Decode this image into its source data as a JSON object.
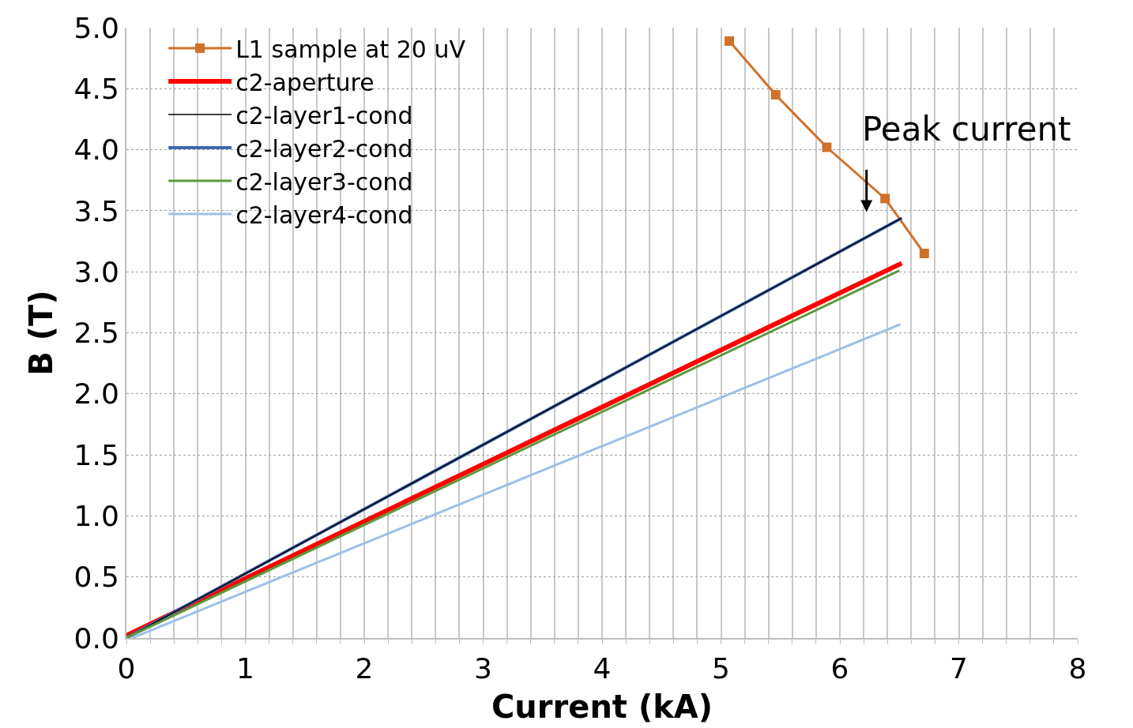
{
  "chart_data": {
    "type": "line",
    "xlabel": "Current (kA)",
    "ylabel": "B (T)",
    "xlim": [
      0,
      8
    ],
    "ylim": [
      0,
      5
    ],
    "xticks": [
      0,
      {
        "value": 0.2,
        "label": null
      },
      {
        "value": 0.4,
        "label": null
      },
      {
        "value": 0.6,
        "label": null
      },
      {
        "value": 0.8,
        "label": null
      },
      1,
      {
        "value": 1.2,
        "label": null
      },
      {
        "value": 1.4,
        "label": null
      },
      {
        "value": 1.6,
        "label": null
      },
      {
        "value": 1.8,
        "label": null
      },
      2,
      {
        "value": 2.2,
        "label": null
      },
      {
        "value": 2.4,
        "label": null
      },
      {
        "value": 2.6,
        "label": null
      },
      {
        "value": 2.8,
        "label": null
      },
      3,
      {
        "value": 3.2,
        "label": null
      },
      {
        "value": 3.4,
        "label": null
      },
      {
        "value": 3.6,
        "label": null
      },
      {
        "value": 3.8,
        "label": null
      },
      4,
      {
        "value": 4.2,
        "label": null
      },
      {
        "value": 4.4,
        "label": null
      },
      {
        "value": 4.6,
        "label": null
      },
      {
        "value": 4.8,
        "label": null
      },
      5,
      {
        "value": 5.2,
        "label": null
      },
      {
        "value": 5.4,
        "label": null
      },
      {
        "value": 5.6,
        "label": null
      },
      {
        "value": 5.8,
        "label": null
      },
      6,
      {
        "value": 6.2,
        "label": null
      },
      {
        "value": 6.4,
        "label": null
      },
      {
        "value": 6.6,
        "label": null
      },
      {
        "value": 6.8,
        "label": null
      },
      7,
      {
        "value": 7.2,
        "label": null
      },
      {
        "value": 7.4,
        "label": null
      },
      {
        "value": 7.6,
        "label": null
      },
      {
        "value": 7.8,
        "label": null
      },
      8
    ],
    "yticks": [
      {
        "value": 0,
        "label": "0.0"
      },
      {
        "value": 0.5,
        "label": "0.5"
      },
      {
        "value": 1,
        "label": "1.0"
      },
      {
        "value": 1.5,
        "label": "1.5"
      },
      {
        "value": 2,
        "label": "2.0"
      },
      {
        "value": 2.5,
        "label": "2.5"
      },
      {
        "value": 3,
        "label": "3.0"
      },
      {
        "value": 3.5,
        "label": "3.5"
      },
      {
        "value": 4,
        "label": "4.0"
      },
      {
        "value": 4.5,
        "label": "4.5"
      },
      {
        "value": 5,
        "label": "5.0"
      }
    ],
    "grid": true,
    "legend": "top left",
    "series": [
      {
        "name": "L1 sample at 20 uV",
        "color": "#d0712a",
        "marker": "square",
        "x": [
          5.07,
          5.46,
          5.89,
          6.38,
          6.71
        ],
        "values": [
          4.89,
          4.45,
          4.02,
          3.6,
          3.15
        ]
      },
      {
        "name": "c2-aperture",
        "color": "#ff0000",
        "marker": "none",
        "x": [
          0,
          6.52
        ],
        "values": [
          0.02,
          3.07
        ]
      },
      {
        "name": "c2-layer1-cond",
        "color": "#000000",
        "marker": "none",
        "x": [
          0,
          6.52
        ],
        "values": [
          0,
          3.44
        ]
      },
      {
        "name": "c2-layer2-cond",
        "color": "#4068b0",
        "marker": "none",
        "x": [
          0,
          6.52
        ],
        "values": [
          0,
          3.44
        ]
      },
      {
        "name": "c2-layer3-cond",
        "color": "#5a9a3c",
        "marker": "none",
        "x": [
          0,
          6.5
        ],
        "values": [
          0,
          3.01
        ]
      },
      {
        "name": "c2-layer4-cond",
        "color": "#9dc0e6",
        "marker": "none",
        "x": [
          0.05,
          6.51
        ],
        "values": [
          0,
          2.57
        ]
      }
    ],
    "annotations": [
      "Peak current"
    ]
  }
}
